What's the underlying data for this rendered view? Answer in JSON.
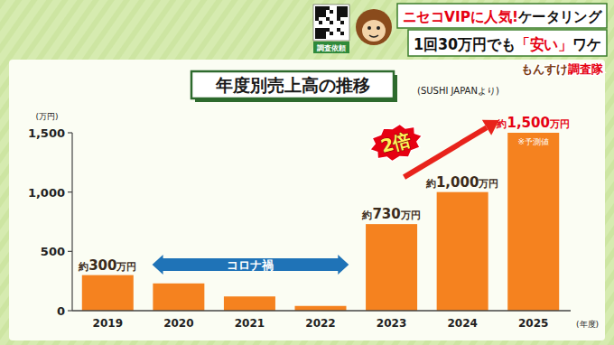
{
  "header": {
    "headline": [
      [
        {
          "text": "ニセコVIPに人気!",
          "color": "#e60012"
        },
        {
          "text": "ケータリング",
          "color": "#111111"
        }
      ],
      [
        {
          "text": "1回30万円でも",
          "color": "#111111"
        },
        {
          "text": "「安い」",
          "color": "#e60012"
        },
        {
          "text": "ワケ",
          "color": "#111111"
        }
      ]
    ],
    "qr_caption": "調査依頼",
    "logo": [
      {
        "text": "もんすけ",
        "color": "#7a3b10"
      },
      {
        "text": "調査隊",
        "color": "#e60012"
      }
    ]
  },
  "chart_data": {
    "type": "bar",
    "title": "年度別売上高の推移",
    "subtitle": "(SUSHI JAPANより)",
    "y_label": "(万円)",
    "x_label": "(年度)",
    "categories": [
      "2019",
      "2020",
      "2021",
      "2022",
      "2023",
      "2024",
      "2025"
    ],
    "values": [
      300,
      230,
      120,
      40,
      730,
      1000,
      1500
    ],
    "value_labels": [
      "約300万円",
      null,
      null,
      null,
      "約730万円",
      "約1,000万円",
      "約1,500万円"
    ],
    "data_labels": true,
    "color": "#f5821f",
    "ylim": [
      0,
      1500
    ],
    "yticks": [
      0,
      500,
      {
        "value": 1000,
        "label": "1,000"
      },
      {
        "value": 1500,
        "label": "1,500"
      }
    ],
    "grid": false,
    "annotations": [
      {
        "text": "コロナ禍"
      },
      {
        "text": "2倍"
      },
      {
        "text": "※予測値"
      }
    ]
  }
}
